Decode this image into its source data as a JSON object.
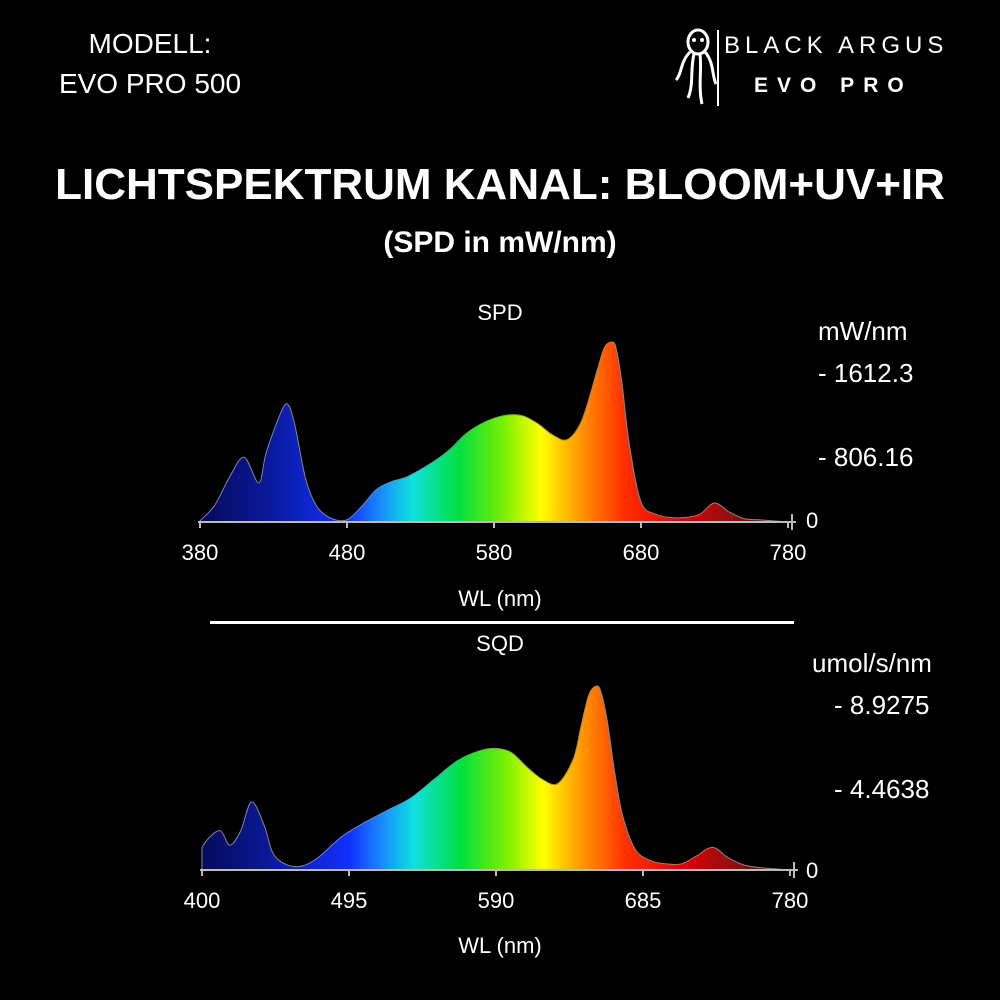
{
  "header": {
    "model_label": "MODELL:",
    "model_name": "EVO PRO 500",
    "brand_name": "BLACK ARGUS",
    "brand_sub": "EVO PRO"
  },
  "title": "LICHTSPEKTRUM KANAL: BLOOM+UV+IR",
  "subtitle": "(SPD in mW/nm)",
  "chart_data": [
    {
      "type": "area",
      "title": "SPD",
      "xlabel": "WL (nm)",
      "ylabel": "mW/nm",
      "xlim": [
        380,
        780
      ],
      "ylim": [
        0,
        1612.3
      ],
      "x_ticks": [
        "380",
        "480",
        "580",
        "680",
        "780"
      ],
      "y_ticks": [
        "0",
        "- 806.16",
        "- 1612.3"
      ],
      "x": [
        380,
        390,
        400,
        410,
        420,
        425,
        435,
        440,
        445,
        452,
        460,
        470,
        480,
        490,
        500,
        510,
        520,
        530,
        540,
        550,
        560,
        570,
        580,
        590,
        600,
        610,
        620,
        630,
        640,
        650,
        655,
        660,
        663,
        667,
        672,
        680,
        690,
        700,
        710,
        720,
        730,
        740,
        750,
        760,
        770,
        780
      ],
      "values": [
        10,
        150,
        400,
        580,
        350,
        620,
        980,
        1050,
        840,
        380,
        130,
        30,
        20,
        140,
        290,
        360,
        400,
        470,
        550,
        650,
        780,
        870,
        930,
        960,
        950,
        880,
        780,
        740,
        920,
        1350,
        1560,
        1612,
        1560,
        1250,
        700,
        180,
        70,
        40,
        40,
        70,
        170,
        90,
        30,
        20,
        10,
        0
      ]
    },
    {
      "type": "area",
      "title": "SQD",
      "xlabel": "WL (nm)",
      "ylabel": "umol/s/nm",
      "xlim": [
        400,
        780
      ],
      "ylim": [
        0,
        8.9275
      ],
      "x_ticks": [
        "400",
        "495",
        "590",
        "685",
        "780"
      ],
      "y_ticks": [
        "0",
        "- 4.4638",
        "- 8.9275"
      ],
      "x": [
        400,
        405,
        412,
        418,
        425,
        432,
        440,
        446,
        455,
        465,
        475,
        490,
        505,
        520,
        535,
        550,
        565,
        580,
        590,
        600,
        610,
        620,
        630,
        640,
        645,
        650,
        655,
        658,
        662,
        667,
        672,
        680,
        690,
        700,
        710,
        720,
        730,
        740,
        750,
        760,
        770,
        780
      ],
      "values": [
        1.1,
        1.6,
        1.9,
        1.2,
        1.9,
        3.3,
        2.2,
        0.8,
        0.25,
        0.2,
        0.6,
        1.6,
        2.3,
        2.9,
        3.5,
        4.4,
        5.3,
        5.8,
        5.9,
        5.7,
        5.0,
        4.4,
        4.2,
        5.4,
        7.0,
        8.5,
        8.93,
        8.6,
        7.2,
        4.6,
        2.6,
        1.0,
        0.45,
        0.3,
        0.3,
        0.7,
        1.1,
        0.6,
        0.25,
        0.12,
        0.06,
        0
      ]
    }
  ]
}
